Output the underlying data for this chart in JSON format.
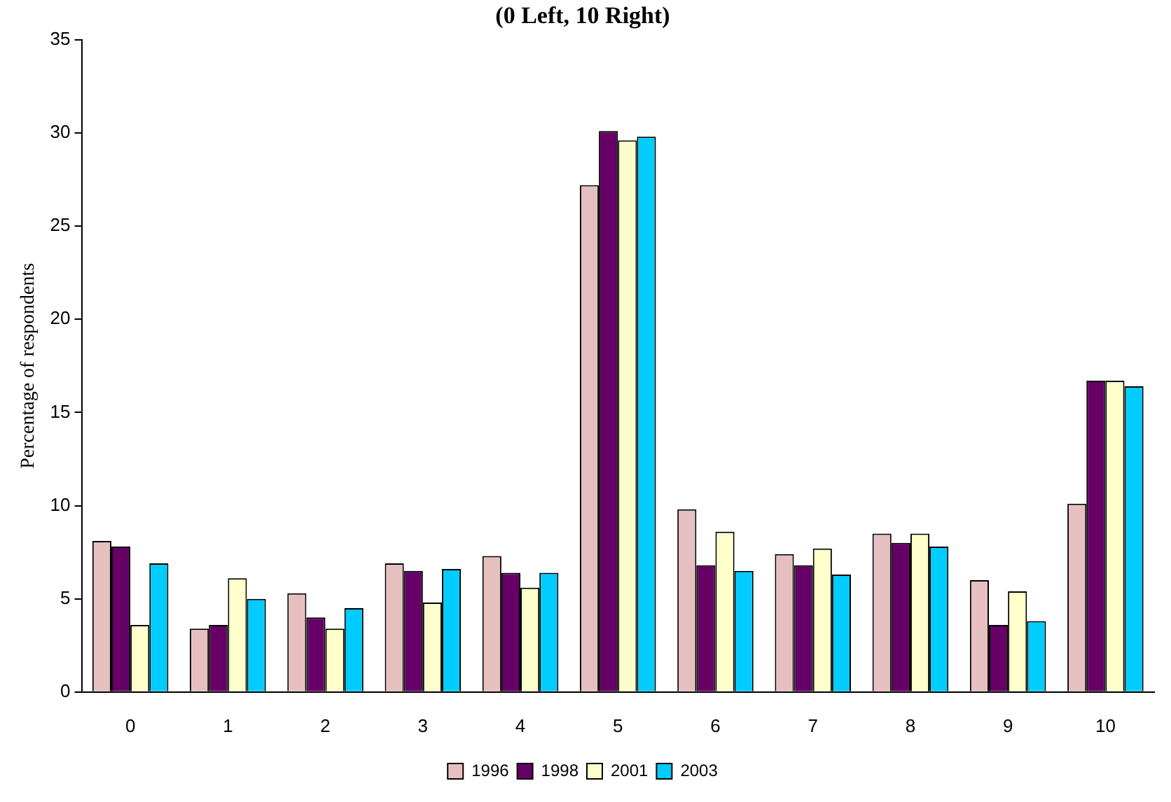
{
  "chart_data": {
    "type": "bar",
    "title": "(0 Left, 10 Right)",
    "ylabel": "Percentage of respondents",
    "categories": [
      "0",
      "1",
      "2",
      "3",
      "4",
      "5",
      "6",
      "7",
      "8",
      "9",
      "10"
    ],
    "series": [
      {
        "name": "1996",
        "color": "#e6c0c0",
        "values": [
          8.1,
          3.4,
          5.3,
          6.9,
          7.3,
          27.2,
          9.8,
          7.4,
          8.5,
          6.0,
          10.1
        ]
      },
      {
        "name": "1998",
        "color": "#660066",
        "values": [
          7.8,
          3.6,
          4.0,
          6.5,
          6.4,
          30.1,
          6.8,
          6.8,
          8.0,
          3.6,
          16.7
        ]
      },
      {
        "name": "2001",
        "color": "#ffffcc",
        "values": [
          3.6,
          6.1,
          3.4,
          4.8,
          5.6,
          29.6,
          8.6,
          7.7,
          8.5,
          5.4,
          16.7
        ]
      },
      {
        "name": "2003",
        "color": "#00ccff",
        "values": [
          6.9,
          5.0,
          4.5,
          6.6,
          6.4,
          29.8,
          6.5,
          6.3,
          7.8,
          3.8,
          16.4
        ]
      }
    ],
    "ylim": [
      0,
      35
    ],
    "yticks": [
      0,
      5,
      10,
      15,
      20,
      25,
      30,
      35
    ],
    "grid": false,
    "legend": "bottom"
  }
}
